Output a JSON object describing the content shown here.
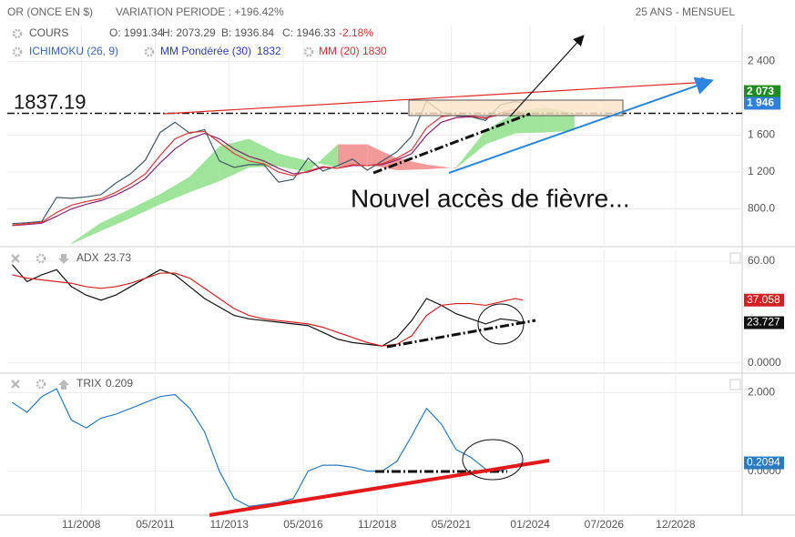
{
  "header": {
    "instrument": "OR (ONCE EN $)",
    "variation": "VARIATION PERIODE : +196.42%",
    "period": "25 ANS - MENSUEL"
  },
  "chart_data": [
    {
      "type": "line",
      "quote": {
        "name": "COURS",
        "open": "O: 1991.34",
        "high": "H: 2073.29",
        "low": "B: 1936.84",
        "close": "C: 1946.33",
        "change": "-2.18%"
      },
      "x": [
        "2006-07",
        "2007-01",
        "2007-07",
        "2008-01",
        "2008-07",
        "2009-01",
        "2009-07",
        "2010-01",
        "2010-07",
        "2011-01",
        "2011-07",
        "2012-01",
        "2012-07",
        "2013-01",
        "2013-07",
        "2014-01",
        "2014-07",
        "2015-01",
        "2015-07",
        "2016-01",
        "2016-07",
        "2017-01",
        "2017-07",
        "2018-01",
        "2018-07",
        "2019-01",
        "2019-07",
        "2020-01",
        "2020-07",
        "2021-01",
        "2021-07",
        "2022-01",
        "2022-07",
        "2023-01",
        "2023-07",
        "2023-10"
      ],
      "xlim": [
        "2006-05",
        "2031-03"
      ],
      "ylim": [
        400,
        2800
      ],
      "yticks": [
        {
          "value": 2400,
          "label": "2 400"
        },
        {
          "value": 1600,
          "label": "1 600"
        },
        {
          "value": 1200,
          "label": "1 200"
        },
        {
          "value": 800,
          "label": "800.0"
        }
      ],
      "grid": true,
      "series": [
        {
          "name": "COURS",
          "color": "#3f5866",
          "values": [
            640,
            650,
            665,
            925,
            915,
            930,
            955,
            1080,
            1180,
            1330,
            1630,
            1740,
            1620,
            1660,
            1320,
            1250,
            1280,
            1280,
            1090,
            1120,
            1350,
            1210,
            1270,
            1340,
            1220,
            1320,
            1420,
            1590,
            1970,
            1850,
            1810,
            1800,
            1760,
            1930,
            1965,
            1946.33
          ]
        },
        {
          "name": "MM Pondérée (30)",
          "color": "#8e1f6e",
          "last": 1832,
          "values": [
            620,
            630,
            645,
            720,
            800,
            850,
            890,
            950,
            1030,
            1130,
            1300,
            1450,
            1560,
            1620,
            1560,
            1450,
            1370,
            1320,
            1240,
            1180,
            1200,
            1250,
            1240,
            1270,
            1270,
            1280,
            1330,
            1400,
            1600,
            1740,
            1790,
            1800,
            1790,
            1820,
            1840,
            1832
          ]
        },
        {
          "name": "MM (20)",
          "color": "#e03a3a",
          "last": 1830,
          "values": [
            625,
            640,
            655,
            760,
            840,
            880,
            910,
            980,
            1070,
            1180,
            1380,
            1560,
            1630,
            1640,
            1520,
            1400,
            1320,
            1290,
            1200,
            1160,
            1210,
            1260,
            1240,
            1280,
            1270,
            1290,
            1350,
            1440,
            1680,
            1800,
            1820,
            1810,
            1780,
            1840,
            1880,
            1830
          ]
        }
      ],
      "ichimoku": {
        "name": "ICHIMOKU (26, 9)",
        "up_color": "#9ee49a",
        "down_color": "#f29a9a",
        "x": [
          "2008-07",
          "2009-07",
          "2010-07",
          "2011-07",
          "2012-07",
          "2013-07",
          "2014-07",
          "2015-07",
          "2016-07",
          "2017-07",
          "2018-07",
          "2019-07",
          "2020-07",
          "2021-07",
          "2022-07",
          "2023-07",
          "2024-07",
          "2025-07"
        ],
        "span_a": [
          430,
          650,
          800,
          960,
          1150,
          1480,
          1560,
          1400,
          1320,
          1250,
          1280,
          1220,
          1230,
          1250,
          1650,
          1850,
          1900,
          1840
        ],
        "span_b": [
          420,
          560,
          700,
          850,
          980,
          1100,
          1250,
          1260,
          1200,
          1500,
          1500,
          1350,
          1280,
          1240,
          1500,
          1620,
          1630,
          1650
        ]
      },
      "level": 1837.19,
      "value_tags": [
        {
          "value": 2073,
          "label": "2 073",
          "color": "#1e8c1e"
        },
        {
          "value": 1946,
          "label": "1 946",
          "color": "#2f7fdc"
        }
      ],
      "annotation": "Nouvel accès de fièvre..."
    },
    {
      "type": "line",
      "x": [
        "2006-07",
        "2007-01",
        "2007-07",
        "2008-01",
        "2008-07",
        "2009-01",
        "2009-07",
        "2010-01",
        "2010-07",
        "2011-01",
        "2011-07",
        "2012-01",
        "2012-07",
        "2013-01",
        "2013-07",
        "2014-01",
        "2014-07",
        "2015-01",
        "2015-07",
        "2016-01",
        "2016-07",
        "2017-01",
        "2017-07",
        "2018-01",
        "2018-07",
        "2019-01",
        "2019-07",
        "2020-01",
        "2020-07",
        "2021-01",
        "2021-07",
        "2022-01",
        "2022-07",
        "2023-01",
        "2023-07",
        "2023-10"
      ],
      "xlim": [
        "2006-05",
        "2031-03"
      ],
      "ylim": [
        -5,
        67
      ],
      "yticks": [
        {
          "value": 60,
          "label": "60.00"
        },
        {
          "value": 0,
          "label": "0.0000"
        }
      ],
      "grid": true,
      "series": [
        {
          "name": "ADX",
          "color": "#111111",
          "last": 23.73,
          "tag": 23.727,
          "values": [
            58,
            48,
            52,
            55,
            45,
            40,
            37,
            40,
            45,
            50,
            55,
            52,
            45,
            38,
            33,
            28,
            26,
            25,
            24,
            23,
            22,
            18,
            14,
            12,
            11,
            10,
            15,
            25,
            38,
            34,
            29,
            26,
            23,
            26,
            25,
            23.727
          ]
        },
        {
          "color": "#d42020",
          "tag": 37.058,
          "values": [
            52,
            50,
            49,
            48,
            47,
            45,
            44,
            45,
            47,
            50,
            53,
            53,
            50,
            44,
            38,
            32,
            28,
            26,
            25,
            24,
            23,
            21,
            18,
            15,
            12,
            10,
            11,
            16,
            28,
            34,
            35,
            35,
            34,
            36,
            38,
            37.058
          ]
        }
      ]
    },
    {
      "type": "line",
      "x": [
        "2006-07",
        "2007-01",
        "2007-07",
        "2008-01",
        "2008-07",
        "2009-01",
        "2009-07",
        "2010-01",
        "2010-07",
        "2011-01",
        "2011-07",
        "2012-01",
        "2012-07",
        "2013-01",
        "2013-07",
        "2014-01",
        "2014-07",
        "2015-01",
        "2015-07",
        "2016-01",
        "2016-07",
        "2017-01",
        "2017-07",
        "2018-01",
        "2018-07",
        "2019-01",
        "2019-07",
        "2020-01",
        "2020-07",
        "2021-01",
        "2021-07",
        "2022-01",
        "2022-07",
        "2023-01",
        "2023-07",
        "2023-10"
      ],
      "xlim": [
        "2006-05",
        "2031-03"
      ],
      "ylim": [
        -1.1,
        2.45
      ],
      "yticks": [
        {
          "value": 2,
          "label": "2.000"
        },
        {
          "value": 0,
          "label": "0.0000"
        }
      ],
      "xticks": [
        {
          "value": "2008-11",
          "label": "11/2008"
        },
        {
          "value": "2011-05",
          "label": "05/2011"
        },
        {
          "value": "2013-11",
          "label": "11/2013"
        },
        {
          "value": "2016-05",
          "label": "05/2016"
        },
        {
          "value": "2018-11",
          "label": "11/2018"
        },
        {
          "value": "2021-05",
          "label": "05/2021"
        },
        {
          "value": "2024-01",
          "label": "01/2024"
        },
        {
          "value": "2026-07",
          "label": "07/2026"
        },
        {
          "value": "2028-12",
          "label": "12/2028"
        }
      ],
      "grid": true,
      "series": [
        {
          "name": "TRIX",
          "color": "#2a7ac0",
          "last": 0.209,
          "tag": 0.2094,
          "values": [
            1.75,
            1.5,
            1.9,
            2.1,
            1.3,
            1.1,
            1.35,
            1.45,
            1.6,
            1.75,
            1.9,
            1.95,
            1.6,
            1.0,
            0.0,
            -0.7,
            -0.9,
            -0.85,
            -0.8,
            -0.7,
            0.0,
            0.15,
            0.15,
            0.1,
            0.0,
            0.0,
            0.25,
            0.9,
            1.6,
            1.2,
            0.55,
            0.35,
            0.05,
            0.0,
            0.15,
            0.2094
          ]
        }
      ]
    }
  ]
}
